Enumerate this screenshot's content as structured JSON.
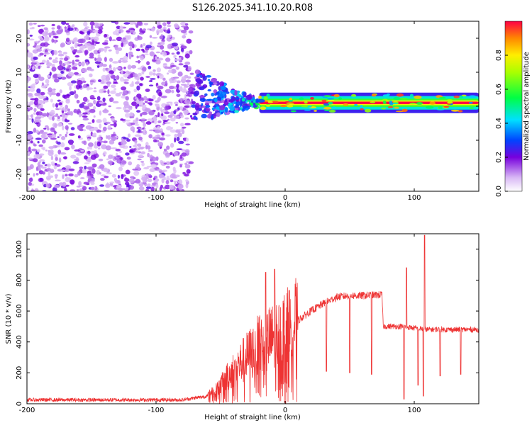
{
  "title": "S126.2025.341.10.20.R08",
  "chart_data": [
    {
      "type": "heatmap",
      "xlabel": "Height of straight line (km)",
      "ylabel": "Frequency (Hz)",
      "xlim": [
        -200,
        150
      ],
      "ylim": [
        -25,
        25
      ],
      "xticks": [
        -200,
        -100,
        0,
        100
      ],
      "yticks": [
        -20,
        -10,
        0,
        10,
        20
      ],
      "noise_region_x": [
        -200,
        -73
      ],
      "transition_region_x": [
        -73,
        -20
      ],
      "line_region_x": [
        -20,
        150
      ],
      "line_frequency": 1,
      "colorbar": {
        "label": "Normalized spectral amplitude",
        "range": [
          0,
          1
        ],
        "ticks": [
          0.0,
          0.2,
          0.4,
          0.6,
          0.8
        ]
      }
    },
    {
      "type": "line",
      "xlabel": "Height of straight line (km)",
      "ylabel": "SNR (10 * v/v)",
      "xlim": [
        -200,
        150
      ],
      "ylim": [
        0,
        1100
      ],
      "xticks": [
        -200,
        -100,
        0,
        100
      ],
      "yticks": [
        0,
        200,
        400,
        600,
        800,
        1000
      ],
      "color": "#ee3333",
      "envelope": {
        "x": [
          -200,
          -80,
          -60,
          -50,
          -40,
          -30,
          -20,
          -10,
          0,
          10,
          20,
          30,
          40,
          50,
          60,
          75,
          76,
          90,
          100,
          110,
          120,
          150
        ],
        "y": [
          25,
          25,
          50,
          120,
          220,
          300,
          380,
          420,
          480,
          540,
          600,
          650,
          690,
          700,
          700,
          705,
          500,
          500,
          490,
          480,
          480,
          480
        ]
      },
      "dips": [
        {
          "x": 32,
          "y": 210
        },
        {
          "x": 50,
          "y": 200
        },
        {
          "x": 67,
          "y": 190
        },
        {
          "x": 92,
          "y": 30
        },
        {
          "x": 103,
          "y": 120
        },
        {
          "x": 107,
          "y": 50
        },
        {
          "x": 120,
          "y": 180
        },
        {
          "x": 136,
          "y": 190
        }
      ],
      "spikes": [
        {
          "x": -15,
          "y": 850
        },
        {
          "x": -8,
          "y": 870
        },
        {
          "x": 94,
          "y": 880
        },
        {
          "x": 108,
          "y": 1090
        }
      ]
    }
  ]
}
